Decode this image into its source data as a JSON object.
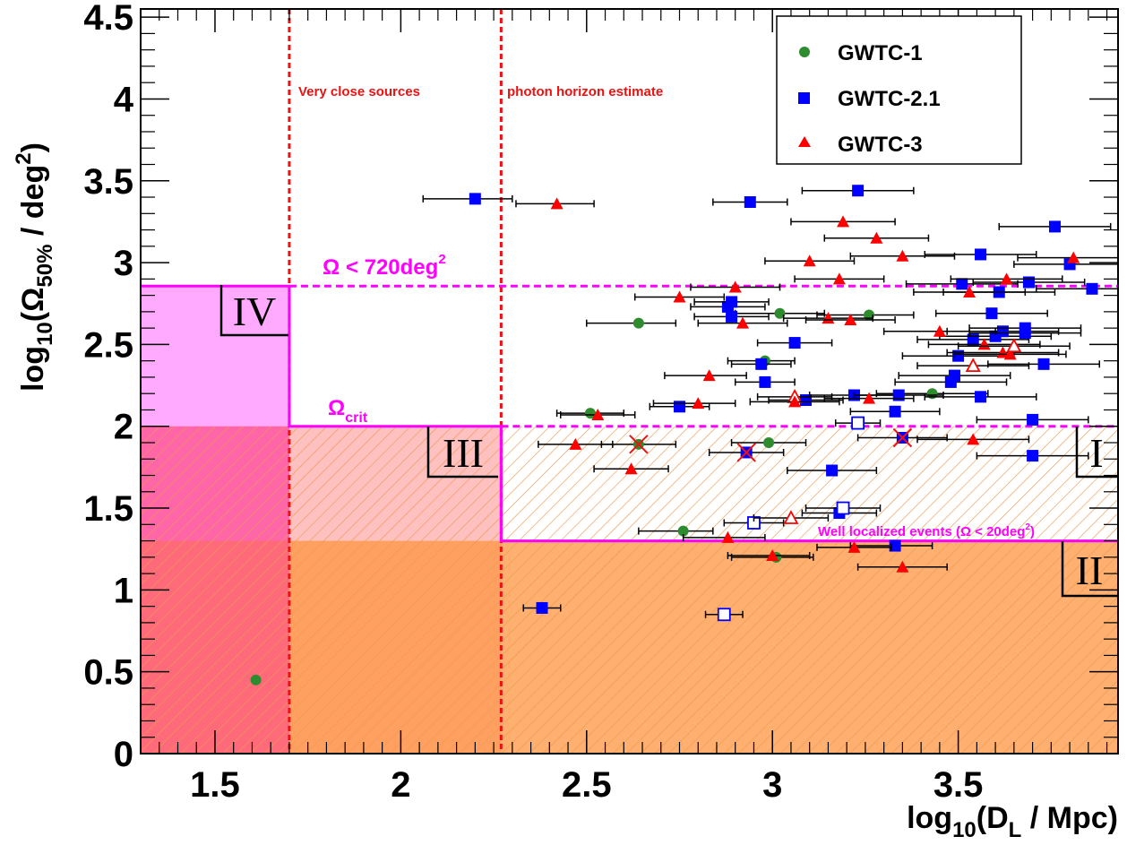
{
  "chart_data": {
    "type": "scatter",
    "x_label": {
      "base": "log",
      "sub1": "10",
      "mid": "(D",
      "sub2": "L",
      "end": " / Mpc)"
    },
    "y_label": {
      "base": "log",
      "sub1": "10",
      "mid": "(Ω",
      "sub2": "50%",
      "end": " / deg",
      "sup": "2",
      "close": ")"
    },
    "xlim": [
      1.3,
      3.93
    ],
    "ylim": [
      0,
      4.55
    ],
    "x_ticks": [
      "1.5",
      "2",
      "2.5",
      "3",
      "3.5"
    ],
    "x_tick_values": [
      1.5,
      2.0,
      2.5,
      3.0,
      3.5
    ],
    "y_ticks": [
      "0",
      "0.5",
      "1",
      "1.5",
      "2",
      "2.5",
      "3",
      "3.5",
      "4",
      "4.5"
    ],
    "y_tick_values": [
      0,
      0.5,
      1,
      1.5,
      2,
      2.5,
      3,
      3.5,
      4,
      4.5
    ],
    "grid": false,
    "legend_position": "top-right",
    "colors": {
      "gwtc1": "#2e8b2e",
      "gwtc21": "#0000ff",
      "gwtc3": "#ff0000",
      "magenta": "#ff00ff",
      "red_line": "#ee1111",
      "region_IV": "#ffaaff",
      "region_III": "#ff8888",
      "region_orange": "#ffcc88",
      "region_II": "#ffb070"
    },
    "series": [
      {
        "name": "GWTC-1",
        "marker": "circle",
        "color": "#2e8b2e",
        "points": [
          {
            "x": 1.61,
            "y": 0.45
          },
          {
            "x": 2.51,
            "y": 2.08,
            "xerr": [
              0.09,
              0.09
            ]
          },
          {
            "x": 2.64,
            "y": 2.63,
            "xerr": [
              0.14,
              0.1
            ]
          },
          {
            "x": 2.64,
            "y": 1.89,
            "xerr": [
              0.1,
              0.1
            ],
            "crossed": true
          },
          {
            "x": 2.76,
            "y": 1.36,
            "xerr": [
              0.12,
              0.08
            ]
          },
          {
            "x": 2.98,
            "y": 2.4,
            "xerr": [
              0.1,
              0.08
            ]
          },
          {
            "x": 2.99,
            "y": 1.9,
            "xerr": [
              0.1,
              0.1
            ]
          },
          {
            "x": 3.01,
            "y": 1.2,
            "xerr": [
              0.12,
              0.1
            ]
          },
          {
            "x": 3.02,
            "y": 2.69,
            "xerr": [
              0.12,
              0.12
            ]
          },
          {
            "x": 3.26,
            "y": 2.68,
            "xerr": [
              0.14,
              0.12
            ]
          },
          {
            "x": 3.43,
            "y": 2.2,
            "xerr": [
              0.15,
              0.15
            ]
          }
        ]
      },
      {
        "name": "GWTC-2.1",
        "marker": "square",
        "color": "#0000ff",
        "points": [
          {
            "x": 2.2,
            "y": 3.39,
            "xerr": [
              0.14,
              0.1
            ]
          },
          {
            "x": 2.38,
            "y": 0.89,
            "xerr": [
              0.05,
              0.05
            ]
          },
          {
            "x": 2.75,
            "y": 2.12,
            "xerr": [
              0.08,
              0.08
            ]
          },
          {
            "x": 2.87,
            "y": 0.85,
            "xerr": [
              0.05,
              0.05
            ],
            "open": true
          },
          {
            "x": 2.88,
            "y": 2.73,
            "xerr": [
              0.1,
              0.1
            ]
          },
          {
            "x": 2.89,
            "y": 2.76,
            "xerr": [
              0.1,
              0.1
            ]
          },
          {
            "x": 2.89,
            "y": 2.67,
            "xerr": [
              0.1,
              0.1
            ]
          },
          {
            "x": 2.93,
            "y": 1.84,
            "xerr": [
              0.1,
              0.1
            ],
            "crossed": true
          },
          {
            "x": 2.94,
            "y": 3.37,
            "xerr": [
              0.1,
              0.1
            ]
          },
          {
            "x": 2.95,
            "y": 1.41,
            "xerr": [
              0.08,
              0.08
            ],
            "open": true
          },
          {
            "x": 2.97,
            "y": 2.38,
            "xerr": [
              0.08,
              0.08
            ]
          },
          {
            "x": 2.98,
            "y": 2.27,
            "xerr": [
              0.08,
              0.08
            ]
          },
          {
            "x": 3.06,
            "y": 2.51,
            "xerr": [
              0.1,
              0.1
            ]
          },
          {
            "x": 3.09,
            "y": 2.16,
            "xerr": [
              0.1,
              0.1
            ]
          },
          {
            "x": 3.16,
            "y": 1.73,
            "xerr": [
              0.12,
              0.12
            ]
          },
          {
            "x": 3.18,
            "y": 1.47,
            "xerr": [
              0.1,
              0.1
            ]
          },
          {
            "x": 3.19,
            "y": 1.5,
            "xerr": [
              0.1,
              0.1
            ],
            "open": true
          },
          {
            "x": 3.22,
            "y": 2.19,
            "xerr": [
              0.12,
              0.12
            ]
          },
          {
            "x": 3.23,
            "y": 3.44,
            "xerr": [
              0.15,
              0.15
            ]
          },
          {
            "x": 3.23,
            "y": 2.02,
            "xerr": [
              0.06,
              0.06
            ],
            "open": true
          },
          {
            "x": 3.33,
            "y": 1.27,
            "xerr": [
              0.12,
              0.1
            ]
          },
          {
            "x": 3.33,
            "y": 2.09,
            "xerr": [
              0.12,
              0.12
            ]
          },
          {
            "x": 3.34,
            "y": 2.19,
            "xerr": [
              0.12,
              0.12
            ]
          },
          {
            "x": 3.35,
            "y": 1.93,
            "xerr": [
              0.12,
              0.12
            ],
            "crossed": true
          },
          {
            "x": 3.48,
            "y": 2.27,
            "xerr": [
              0.15,
              0.15
            ]
          },
          {
            "x": 3.49,
            "y": 2.31,
            "xerr": [
              0.15,
              0.15
            ]
          },
          {
            "x": 3.5,
            "y": 2.43,
            "xerr": [
              0.15,
              0.15
            ]
          },
          {
            "x": 3.51,
            "y": 2.87,
            "xerr": [
              0.15,
              0.15
            ]
          },
          {
            "x": 3.54,
            "y": 2.53,
            "xerr": [
              0.15,
              0.15
            ]
          },
          {
            "x": 3.56,
            "y": 3.05,
            "xerr": [
              0.15,
              0.15
            ]
          },
          {
            "x": 3.56,
            "y": 2.18,
            "xerr": [
              0.15,
              0.15
            ]
          },
          {
            "x": 3.59,
            "y": 2.69,
            "xerr": [
              0.15,
              0.15
            ]
          },
          {
            "x": 3.6,
            "y": 2.55,
            "xerr": [
              0.15,
              0.15
            ]
          },
          {
            "x": 3.61,
            "y": 2.82,
            "xerr": [
              0.15,
              0.15
            ]
          },
          {
            "x": 3.62,
            "y": 2.58,
            "xerr": [
              0.15,
              0.15
            ]
          },
          {
            "x": 3.68,
            "y": 2.6,
            "xerr": [
              0.15,
              0.15
            ]
          },
          {
            "x": 3.68,
            "y": 2.57,
            "xerr": [
              0.15,
              0.15
            ]
          },
          {
            "x": 3.69,
            "y": 2.88,
            "xerr": [
              0.15,
              0.15
            ]
          },
          {
            "x": 3.7,
            "y": 2.04,
            "xerr": [
              0.15,
              0.15
            ]
          },
          {
            "x": 3.7,
            "y": 1.82,
            "xerr": [
              0.15,
              0.15
            ]
          },
          {
            "x": 3.73,
            "y": 2.38,
            "xerr": [
              0.15,
              0.15
            ]
          },
          {
            "x": 3.76,
            "y": 3.22,
            "xerr": [
              0.15,
              0.15
            ]
          },
          {
            "x": 3.8,
            "y": 2.99,
            "xerr": [
              0.15,
              0.15
            ]
          },
          {
            "x": 3.86,
            "y": 2.84,
            "xerr": [
              0.15,
              0.15
            ]
          }
        ]
      },
      {
        "name": "GWTC-3",
        "marker": "triangle",
        "color": "#ff0000",
        "points": [
          {
            "x": 2.42,
            "y": 3.36,
            "xerr": [
              0.11,
              0.1
            ]
          },
          {
            "x": 2.47,
            "y": 1.89,
            "xerr": [
              0.1,
              0.1
            ]
          },
          {
            "x": 2.53,
            "y": 2.07,
            "xerr": [
              0.1,
              0.1
            ]
          },
          {
            "x": 2.62,
            "y": 1.74,
            "xerr": [
              0.1,
              0.1
            ]
          },
          {
            "x": 2.75,
            "y": 2.79,
            "xerr": [
              0.12,
              0.12
            ]
          },
          {
            "x": 2.8,
            "y": 2.14,
            "xerr": [
              0.12,
              0.1
            ]
          },
          {
            "x": 2.83,
            "y": 2.31,
            "xerr": [
              0.12,
              0.1
            ]
          },
          {
            "x": 2.88,
            "y": 1.32,
            "xerr": [
              0.12,
              0.1
            ]
          },
          {
            "x": 2.9,
            "y": 2.85,
            "xerr": [
              0.12,
              0.12
            ]
          },
          {
            "x": 2.92,
            "y": 2.63,
            "xerr": [
              0.12,
              0.12
            ]
          },
          {
            "x": 3.0,
            "y": 1.21,
            "xerr": [
              0.12,
              0.1
            ]
          },
          {
            "x": 3.05,
            "y": 1.44,
            "xerr": [
              0.1,
              0.1
            ],
            "open": true
          },
          {
            "x": 3.06,
            "y": 2.18,
            "xerr": [
              0.1,
              0.1
            ],
            "open": true
          },
          {
            "x": 3.06,
            "y": 2.15,
            "xerr": [
              0.12,
              0.12
            ]
          },
          {
            "x": 3.1,
            "y": 3.01,
            "xerr": [
              0.12,
              0.12
            ]
          },
          {
            "x": 3.15,
            "y": 2.66,
            "xerr": [
              0.12,
              0.12
            ]
          },
          {
            "x": 3.18,
            "y": 2.9,
            "xerr": [
              0.12,
              0.12
            ]
          },
          {
            "x": 3.19,
            "y": 3.25,
            "xerr": [
              0.14,
              0.14
            ]
          },
          {
            "x": 3.21,
            "y": 2.65,
            "xerr": [
              0.12,
              0.12
            ]
          },
          {
            "x": 3.22,
            "y": 1.26,
            "xerr": [
              0.1,
              0.1
            ]
          },
          {
            "x": 3.26,
            "y": 2.17,
            "xerr": [
              0.12,
              0.12
            ]
          },
          {
            "x": 3.28,
            "y": 3.15,
            "xerr": [
              0.14,
              0.14
            ]
          },
          {
            "x": 3.35,
            "y": 3.04,
            "xerr": [
              0.14,
              0.14
            ]
          },
          {
            "x": 3.35,
            "y": 1.14,
            "xerr": [
              0.12,
              0.12
            ]
          },
          {
            "x": 3.45,
            "y": 2.58,
            "xerr": [
              0.15,
              0.15
            ]
          },
          {
            "x": 3.53,
            "y": 2.82,
            "xerr": [
              0.15,
              0.15
            ]
          },
          {
            "x": 3.54,
            "y": 1.92,
            "xerr": [
              0.15,
              0.15
            ]
          },
          {
            "x": 3.54,
            "y": 2.37,
            "xerr": [
              0.15,
              0.15
            ],
            "open": true
          },
          {
            "x": 3.57,
            "y": 2.5,
            "xerr": [
              0.15,
              0.15
            ]
          },
          {
            "x": 3.62,
            "y": 2.45,
            "xerr": [
              0.15,
              0.15
            ]
          },
          {
            "x": 3.63,
            "y": 2.9,
            "xerr": [
              0.15,
              0.15
            ]
          },
          {
            "x": 3.64,
            "y": 2.44,
            "xerr": [
              0.15,
              0.15
            ]
          },
          {
            "x": 3.65,
            "y": 2.49,
            "xerr": [
              0.15,
              0.15
            ],
            "open": true
          },
          {
            "x": 3.81,
            "y": 3.03,
            "xerr": [
              0.15,
              0.15
            ]
          }
        ]
      }
    ],
    "lines": {
      "red_vertical": [
        1.7,
        2.27
      ],
      "omega_720": 2.857,
      "omega_crit": 2.0,
      "well_localized": 1.3
    },
    "annotations": {
      "very_close": "Very close sources",
      "photon_horizon": "photon horizon estimate",
      "omega_720_prefix": "Ω < 720deg",
      "omega_720_sup": "2",
      "omega_crit_base": "Ω",
      "omega_crit_sub": "crit",
      "well_localized_text": "Well localized events (Ω < 20deg",
      "well_localized_sup": "2",
      "well_localized_close": ")"
    },
    "regions": {
      "I": "I",
      "II": "II",
      "III": "III",
      "IV": "IV"
    }
  }
}
